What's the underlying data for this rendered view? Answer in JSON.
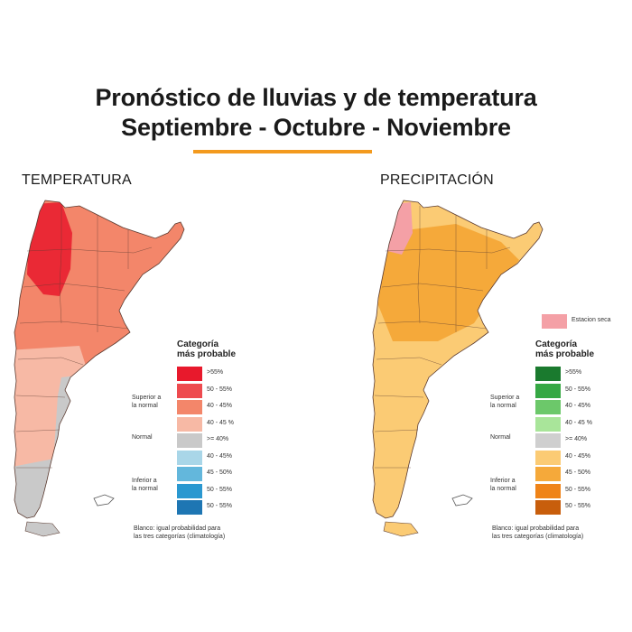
{
  "title": {
    "line1": "Pronóstico de lluvias y de temperatura",
    "line2": "Septiembre - Octubre - Noviembre"
  },
  "accent_color": "#f39a1e",
  "temperature": {
    "panel_title": "TEMPERATURA",
    "legend_heading_1": "Categoría",
    "legend_heading_2": "más probable",
    "groups": {
      "superior_1": "Superior a",
      "superior_2": "la normal",
      "normal": "Normal",
      "inferior_1": "Inferior a",
      "inferior_2": "la normal"
    },
    "legend": [
      {
        "label": ">55%",
        "color": "#e8192c"
      },
      {
        "label": "50 - 55%",
        "color": "#ee4b4f"
      },
      {
        "label": "40 - 45%",
        "color": "#f3866a"
      },
      {
        "label": "40 - 45 %",
        "color": "#f7b9a5"
      },
      {
        "label": ">= 40%",
        "color": "#c9c9c9"
      },
      {
        "label": "40 - 45%",
        "color": "#a9d6e8"
      },
      {
        "label": "45 - 50%",
        "color": "#63b7dc"
      },
      {
        "label": "50 - 55%",
        "color": "#2a98d0"
      },
      {
        "label": "50 - 55%",
        "color": "#1e76b3"
      }
    ],
    "note_1": "Blanco: igual probabilidad para",
    "note_2": "las tres categorías (climatología)"
  },
  "precipitation": {
    "panel_title": "PRECIPITACIÓN",
    "dry_season": {
      "label": "Estacion seca",
      "color": "#f4a0a6"
    },
    "legend_heading_1": "Categoría",
    "legend_heading_2": "más probable",
    "groups": {
      "superior_1": "Superior a",
      "superior_2": "la normal",
      "normal": "Normal",
      "inferior_1": "Inferior a",
      "inferior_2": "la normal"
    },
    "legend": [
      {
        "label": ">55%",
        "color": "#1a7a2e"
      },
      {
        "label": "50 - 55%",
        "color": "#36a844"
      },
      {
        "label": "40 - 45%",
        "color": "#6cc86a"
      },
      {
        "label": "40 - 45 %",
        "color": "#a9e59a"
      },
      {
        "label": ">= 40%",
        "color": "#cfcfcf"
      },
      {
        "label": "40 - 45%",
        "color": "#fbcb74"
      },
      {
        "label": "45 - 50%",
        "color": "#f5a93a"
      },
      {
        "label": "50 - 55%",
        "color": "#ef8318"
      },
      {
        "label": "50 - 55%",
        "color": "#c85e0c"
      }
    ],
    "note_1": "Blanco: igual probabilidad para",
    "note_2": "las tres categorías (climatología)"
  }
}
